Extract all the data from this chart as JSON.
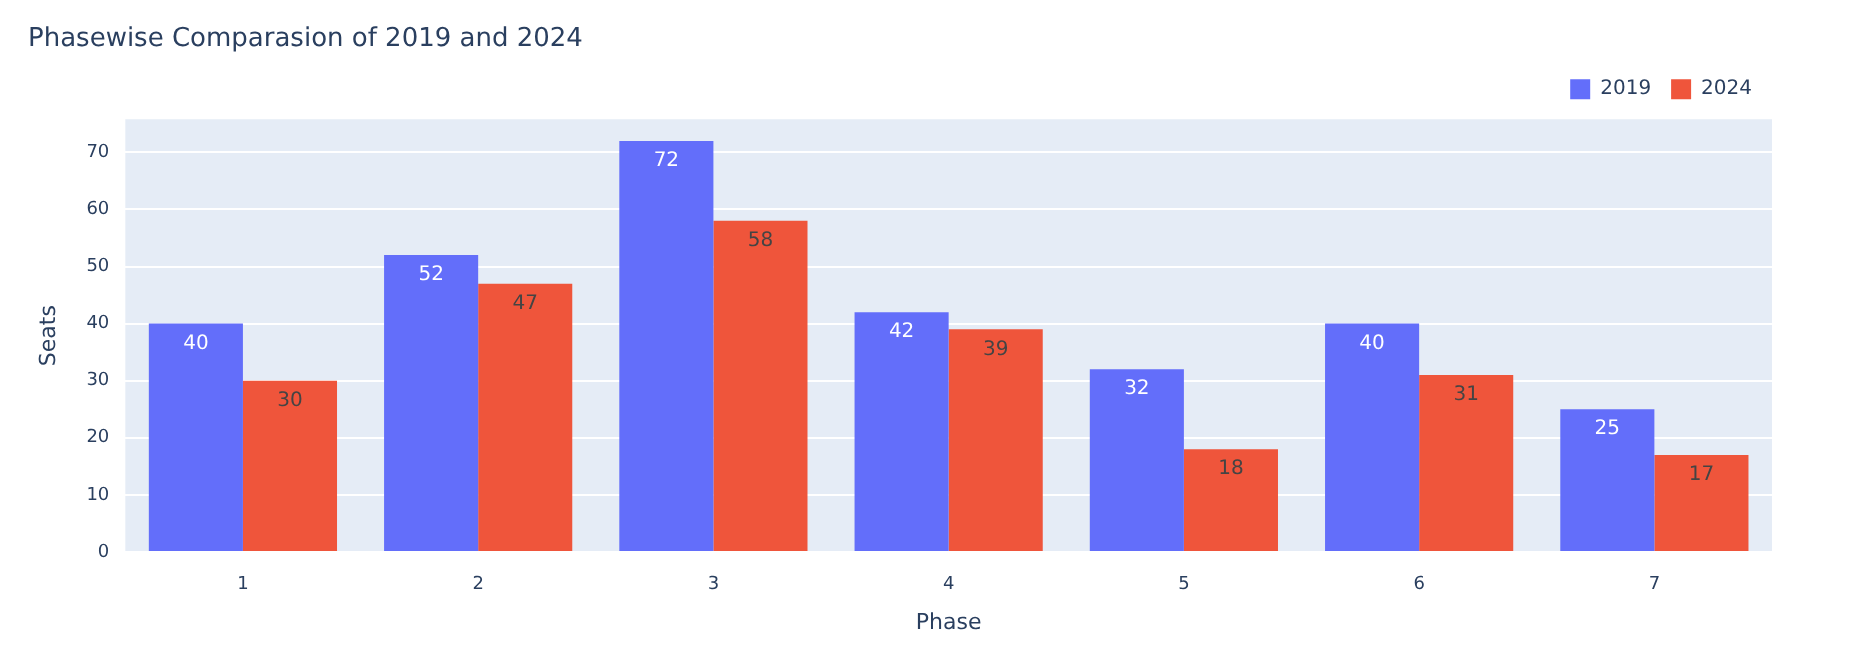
{
  "chart_data": {
    "type": "bar",
    "title": "Phasewise Comparasion of 2019 and 2024",
    "xlabel": "Phase",
    "ylabel": "Seats",
    "categories": [
      "1",
      "2",
      "3",
      "4",
      "5",
      "6",
      "7"
    ],
    "series": [
      {
        "name": "2019",
        "color": "#636efa",
        "values": [
          40,
          52,
          72,
          42,
          32,
          40,
          25
        ]
      },
      {
        "name": "2024",
        "color": "#ef553b",
        "values": [
          30,
          47,
          58,
          39,
          18,
          31,
          17
        ]
      }
    ],
    "ylim": [
      0,
      75.8
    ],
    "yticks": [
      0,
      10,
      20,
      30,
      40,
      50,
      60,
      70
    ],
    "grid": "y",
    "legend": "top right",
    "data_labels": true
  }
}
